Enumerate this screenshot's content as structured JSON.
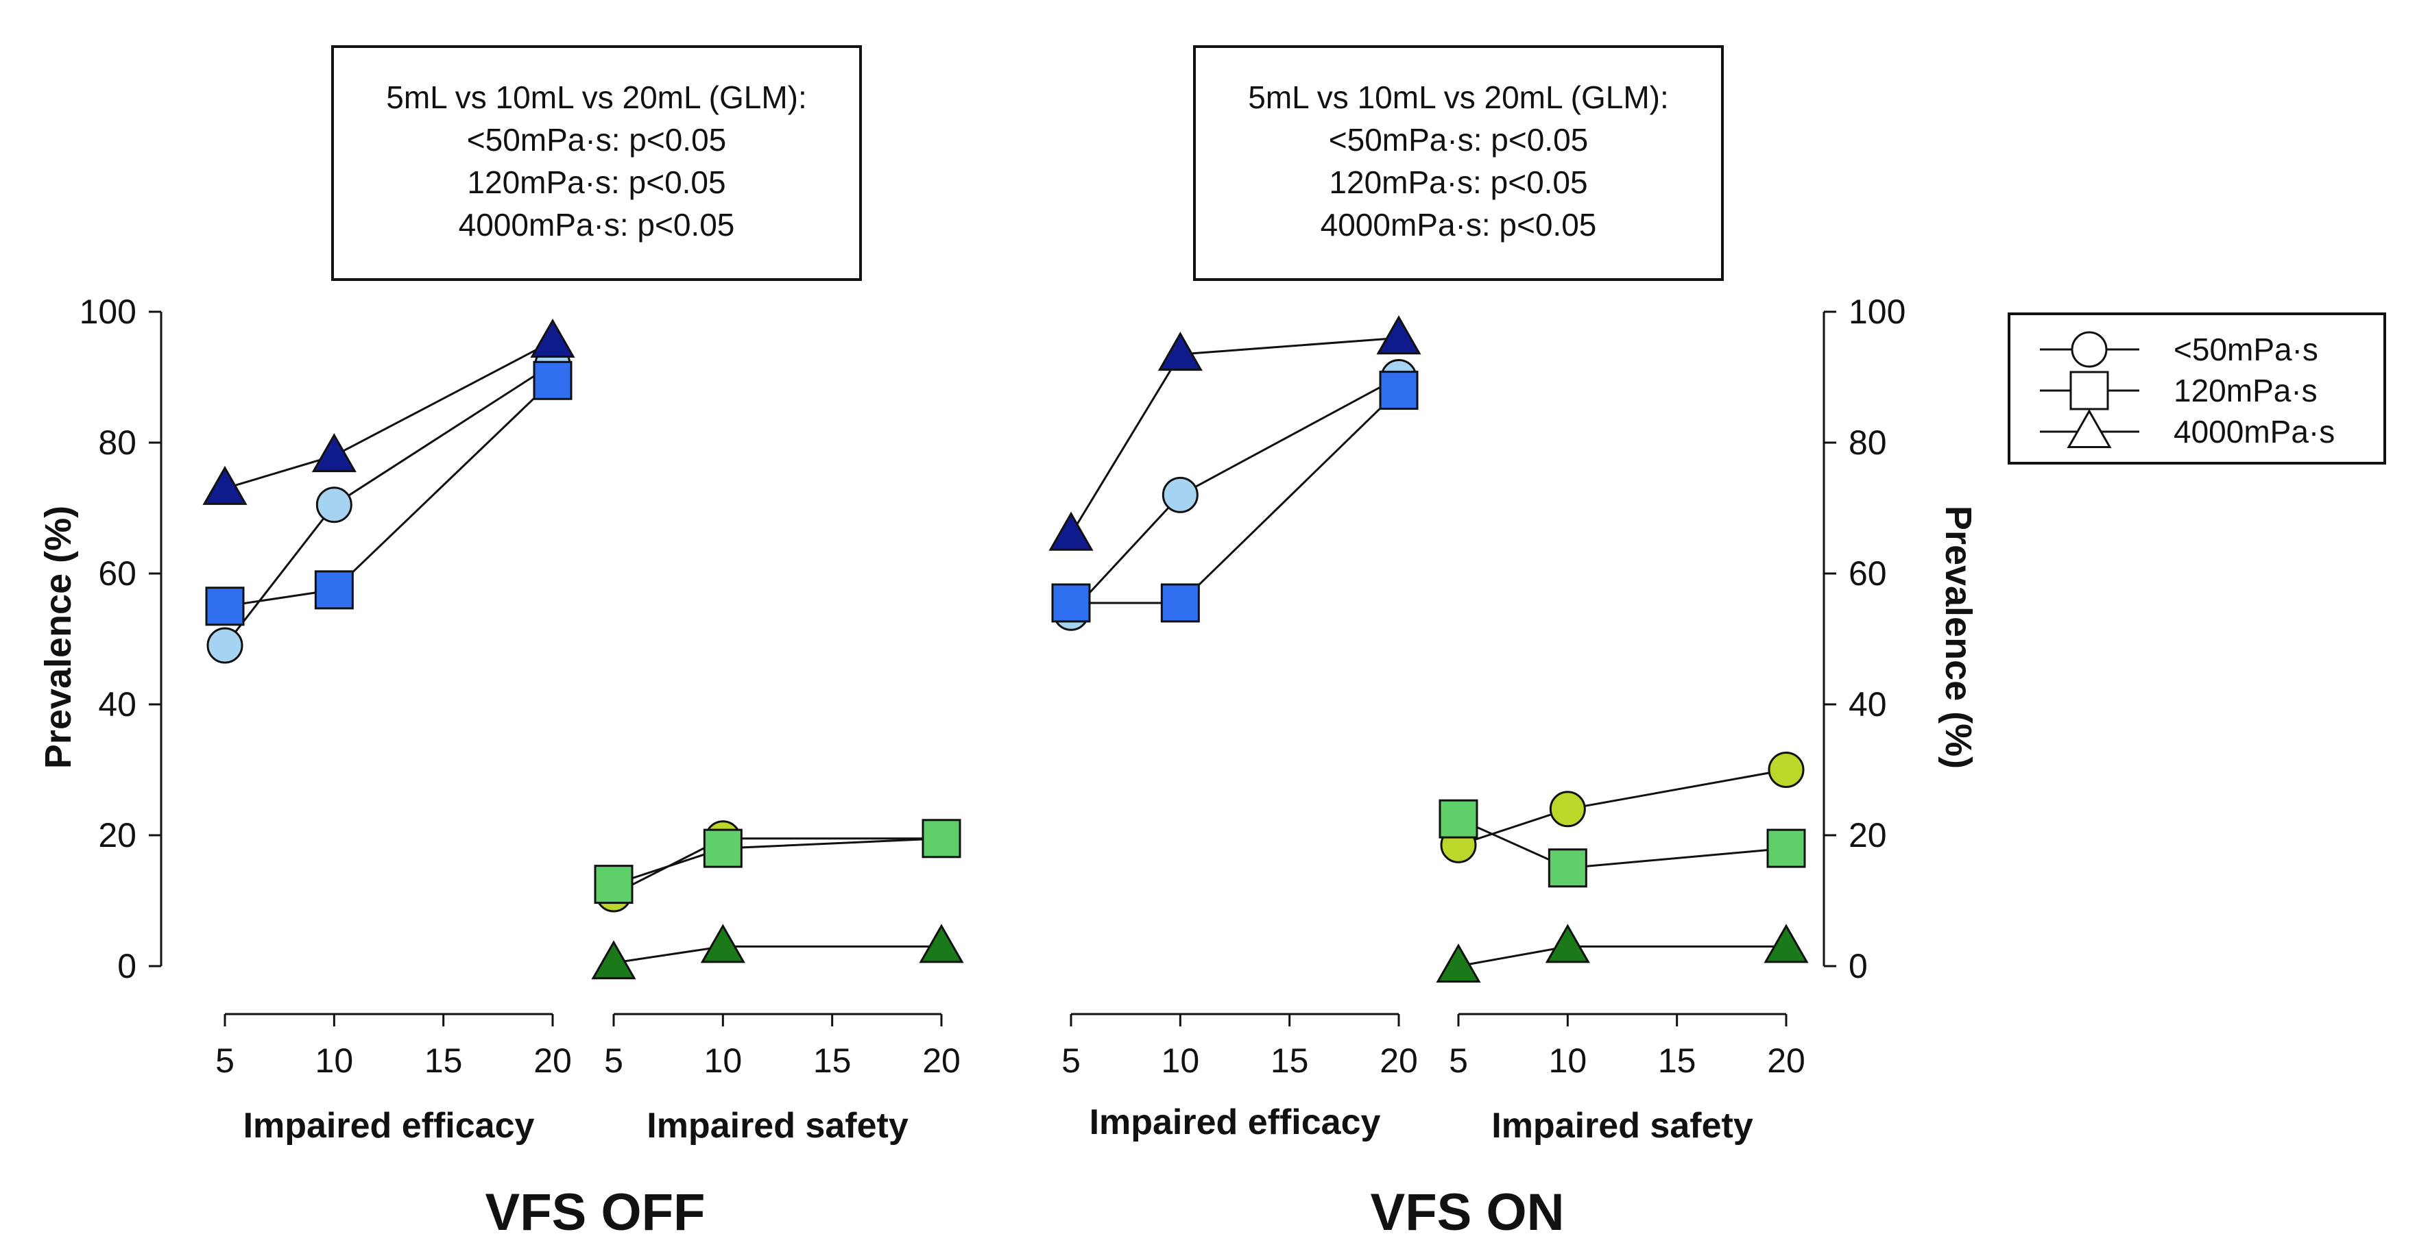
{
  "chart_data": {
    "type": "line",
    "y_axis": {
      "label": "Prevalence (%)",
      "ylim": [
        0,
        100
      ],
      "ticks": [
        "0",
        "20",
        "40",
        "60",
        "80",
        "100"
      ]
    },
    "x_axis": {
      "xlim": [
        5,
        20
      ],
      "ticks": [
        "5",
        "10",
        "15",
        "20"
      ]
    },
    "legend": {
      "position": "top-right",
      "entries": [
        {
          "label": "<50mPa·s",
          "shape": "circle"
        },
        {
          "label": "120mPa·s",
          "shape": "square"
        },
        {
          "label": "4000mPa·s",
          "shape": "triangle"
        }
      ]
    },
    "panels": [
      {
        "title": "VFS OFF",
        "stats_box": [
          "5mL vs 10mL vs 20mL (GLM):",
          "<50mPa·s: p<0.05",
          "120mPa·s: p<0.05",
          "4000mPa·s: p<0.05"
        ],
        "groups": [
          {
            "label": "Impaired efficacy",
            "series": [
              {
                "name": "<50mPa·s",
                "shape": "circle",
                "color": "#a6d3f2",
                "x": [
                  5,
                  10,
                  20
                ],
                "values": [
                  49,
                  70.5,
                  92
                ]
              },
              {
                "name": "120mPa·s",
                "shape": "square",
                "color": "#2f6ff0",
                "x": [
                  5,
                  10,
                  20
                ],
                "values": [
                  55,
                  57.5,
                  89.5
                ]
              },
              {
                "name": "4000mPa·s",
                "shape": "triangle",
                "color": "#0f1a8c",
                "x": [
                  5,
                  10,
                  20
                ],
                "values": [
                  73,
                  78,
                  95.5
                ]
              }
            ]
          },
          {
            "label": "Impaired safety",
            "series": [
              {
                "name": "<50mPa·s",
                "shape": "circle",
                "color": "#bcd62a",
                "x": [
                  5,
                  10,
                  20
                ],
                "values": [
                  11,
                  19.5,
                  19.5
                ]
              },
              {
                "name": "120mPa·s",
                "shape": "square",
                "color": "#5fcf6a",
                "x": [
                  5,
                  10,
                  20
                ],
                "values": [
                  12.5,
                  18,
                  19.5
                ]
              },
              {
                "name": "4000mPa·s",
                "shape": "triangle",
                "color": "#1a7a1a",
                "x": [
                  5,
                  10,
                  20
                ],
                "values": [
                  0.5,
                  3,
                  3
                ]
              }
            ]
          }
        ]
      },
      {
        "title": "VFS ON",
        "stats_box": [
          "5mL vs 10mL vs 20mL (GLM):",
          "<50mPa·s: p<0.05",
          "120mPa·s: p<0.05",
          "4000mPa·s: p<0.05"
        ],
        "groups": [
          {
            "label": "Impaired efficacy",
            "series": [
              {
                "name": "<50mPa·s",
                "shape": "circle",
                "color": "#a6d3f2",
                "x": [
                  5,
                  10,
                  20
                ],
                "values": [
                  54,
                  72,
                  90
                ]
              },
              {
                "name": "120mPa·s",
                "shape": "square",
                "color": "#2f6ff0",
                "x": [
                  5,
                  10,
                  20
                ],
                "values": [
                  55.5,
                  55.5,
                  88
                ]
              },
              {
                "name": "4000mPa·s",
                "shape": "triangle",
                "color": "#0f1a8c",
                "x": [
                  5,
                  10,
                  20
                ],
                "values": [
                  66,
                  93.5,
                  96
                ]
              }
            ]
          },
          {
            "label": "Impaired safety",
            "series": [
              {
                "name": "<50mPa·s",
                "shape": "circle",
                "color": "#bcd62a",
                "x": [
                  5,
                  10,
                  20
                ],
                "values": [
                  18.5,
                  24,
                  30
                ]
              },
              {
                "name": "120mPa·s",
                "shape": "square",
                "color": "#5fcf6a",
                "x": [
                  5,
                  10,
                  20
                ],
                "values": [
                  22.5,
                  15,
                  18
                ]
              },
              {
                "name": "4000mPa·s",
                "shape": "triangle",
                "color": "#1a7a1a",
                "x": [
                  5,
                  10,
                  20
                ],
                "values": [
                  0,
                  3,
                  3
                ]
              }
            ]
          }
        ]
      }
    ]
  }
}
